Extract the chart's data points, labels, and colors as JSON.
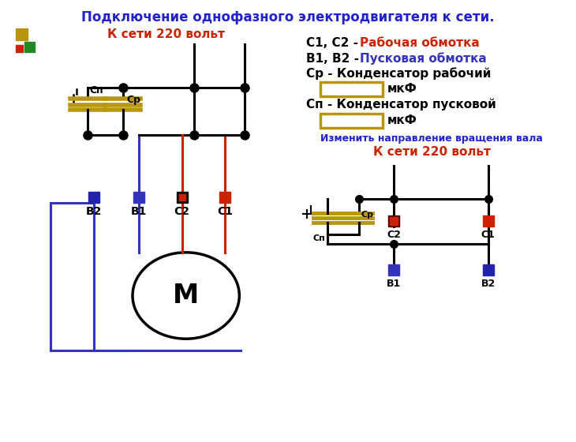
{
  "title": "Подключение однофазного электродвигателя к сети.",
  "title_color": "#2222cc",
  "title_fontsize": 12,
  "net_label": "К сети 220 вольт",
  "net_label_color": "#cc2200",
  "net_label2": "К сети 220 вольт",
  "net_label2_color": "#cc2200",
  "change_dir_label": "Изменить направление вращения вала",
  "change_dir_color": "#2222cc",
  "cap_color": "#b8960c",
  "wire_color": "#000000",
  "motor_text": "М",
  "blue_color": "#3333bb",
  "red_color": "#cc2200",
  "sq_yellow": "#b8960c",
  "sq_red": "#cc2200",
  "sq_green": "#228822"
}
